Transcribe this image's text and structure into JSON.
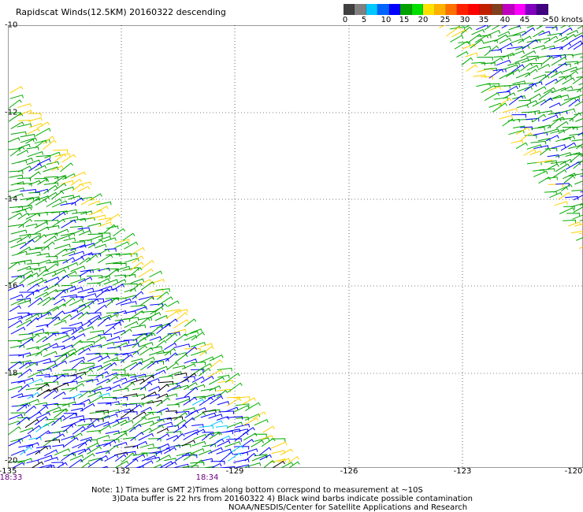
{
  "title": "Rapidscat Winds(12.5KM) 20160322 descending",
  "color_scale": {
    "colors": [
      "#404040",
      "#808080",
      "#00c8ff",
      "#0064ff",
      "#0000ff",
      "#00a000",
      "#00e000",
      "#ffe000",
      "#ffb000",
      "#ff7000",
      "#ff2000",
      "#ff0000",
      "#c02000",
      "#804020",
      "#c000c0",
      "#ff00ff",
      "#8000c0",
      "#400080"
    ],
    "labels": [
      "0",
      "5",
      "10",
      "15",
      "20",
      "25",
      "30",
      "35",
      "40",
      "45",
      ">50 knots"
    ]
  },
  "axes": {
    "lat_labels": [
      "-10",
      "-12",
      "-14",
      "-16",
      "-18",
      "-20"
    ],
    "lon_labels": [
      "-135",
      "-132",
      "-129",
      "-126",
      "-123",
      "-120"
    ]
  },
  "times": [
    "18:33",
    "18:34"
  ],
  "notes": [
    "Note: 1) Times are GMT 2)Times along bottom correspond to measurement at ~10S",
    "3)Data buffer is 22 hrs from 20160322 4) Black wind barbs indicate possible contamination",
    "NOAA/NESDIS/Center for Satellite Applications and Research"
  ]
}
